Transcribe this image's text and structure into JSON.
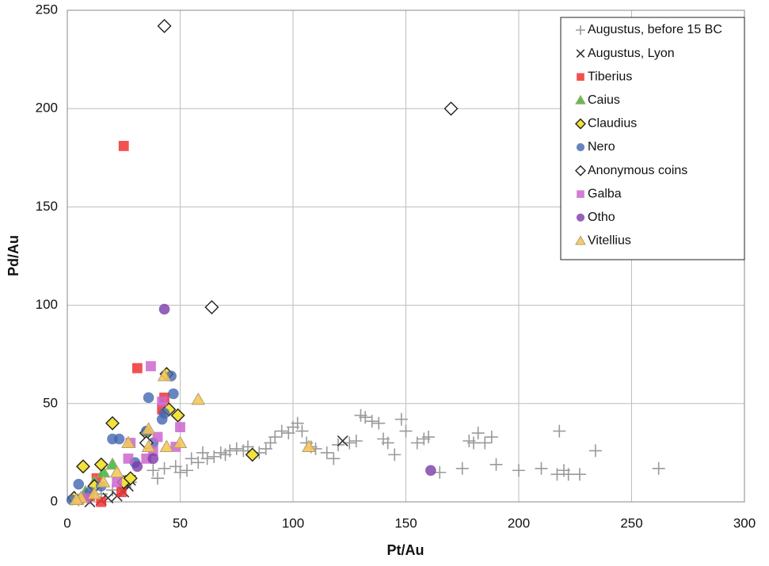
{
  "chart_data": {
    "type": "scatter",
    "x_label": "Pt/Au",
    "y_label": "Pd/Au",
    "xlim": [
      0,
      300
    ],
    "ylim": [
      0,
      250
    ],
    "xticks": [
      0,
      50,
      100,
      150,
      200,
      250,
      300
    ],
    "yticks": [
      0,
      50,
      100,
      150,
      200,
      250
    ],
    "grid": true,
    "legend": "upper right",
    "series": [
      {
        "name": "Augustus, before 15 BC",
        "color": "#9a9a9a",
        "marker": "plus",
        "x": [
          40,
          38,
          43,
          48,
          50,
          53,
          55,
          58,
          60,
          62,
          65,
          68,
          70,
          72,
          75,
          78,
          80,
          85,
          88,
          90,
          92,
          95,
          98,
          100,
          102,
          104,
          106,
          108,
          110,
          115,
          118,
          120,
          125,
          128,
          130,
          132,
          135,
          138,
          140,
          142,
          145,
          148,
          150,
          155,
          158,
          160,
          165,
          175,
          178,
          180,
          182,
          185,
          188,
          190,
          200,
          210,
          218,
          217,
          220,
          222,
          227,
          234,
          262,
          10,
          15,
          20,
          25,
          28,
          5
        ],
        "values": [
          12,
          16,
          17,
          18,
          15,
          16,
          22,
          20,
          25,
          22,
          23,
          25,
          24,
          26,
          27,
          26,
          28,
          25,
          27,
          30,
          33,
          36,
          35,
          38,
          40,
          36,
          30,
          28,
          27,
          25,
          22,
          29,
          30,
          31,
          44,
          43,
          41,
          40,
          32,
          30,
          24,
          42,
          36,
          30,
          32,
          33,
          15,
          17,
          31,
          30,
          35,
          30,
          33,
          19,
          16,
          17,
          36,
          14,
          16,
          14,
          14,
          26,
          17,
          2,
          4,
          6,
          8,
          10,
          1
        ]
      },
      {
        "name": "Augustus, Lyon",
        "color": "#333333",
        "marker": "x",
        "x": [
          122,
          25,
          27,
          22,
          18,
          15,
          10,
          28
        ],
        "values": [
          31,
          5,
          8,
          3,
          2,
          1,
          0,
          11
        ]
      },
      {
        "name": "Tiberius",
        "color": "#ee3333",
        "marker": "square",
        "x": [
          25,
          31,
          43,
          42,
          13,
          15,
          24,
          10,
          5
        ],
        "values": [
          181,
          68,
          53,
          47,
          12,
          0,
          5,
          3,
          1
        ]
      },
      {
        "name": "Caius",
        "color": "#44bb44",
        "marker": "triangle",
        "x": [
          20,
          16,
          12,
          8
        ],
        "values": [
          19,
          15,
          10,
          5
        ]
      },
      {
        "name": "Claudius",
        "color": "#f2e23a",
        "marker": "diamond",
        "x": [
          7,
          15,
          20,
          44,
          45,
          49,
          82,
          25,
          28,
          35,
          12,
          3
        ],
        "values": [
          18,
          19,
          40,
          65,
          47,
          44,
          24,
          10,
          12,
          35,
          8,
          2
        ]
      },
      {
        "name": "Nero",
        "color": "#4466b0",
        "marker": "circle",
        "x": [
          2,
          5,
          20,
          23,
          35,
          36,
          42,
          43,
          46,
          47,
          38,
          10,
          15,
          30
        ],
        "values": [
          1,
          9,
          32,
          32,
          36,
          53,
          42,
          45,
          64,
          55,
          30,
          5,
          8,
          20
        ]
      },
      {
        "name": "Anonymous coins",
        "color": "#ffffff",
        "marker": "diamond",
        "x": [
          43,
          170,
          64,
          35
        ],
        "values": [
          242,
          200,
          99,
          30
        ]
      },
      {
        "name": "Galba",
        "color": "#cc66cc",
        "marker": "square",
        "x": [
          37,
          42,
          48,
          50,
          27,
          35,
          38,
          40,
          28,
          22,
          8
        ],
        "values": [
          69,
          51,
          28,
          38,
          22,
          22,
          26,
          33,
          30,
          10,
          2
        ]
      },
      {
        "name": "Otho",
        "color": "#7a3aa8",
        "marker": "circle",
        "x": [
          43,
          161,
          31,
          38
        ],
        "values": [
          98,
          16,
          18,
          22
        ]
      },
      {
        "name": "Vitellius",
        "color": "#f6c65a",
        "marker": "triangle",
        "x": [
          43,
          58,
          50,
          44,
          36,
          27,
          22,
          16,
          107,
          12,
          6,
          4,
          36
        ],
        "values": [
          64,
          52,
          30,
          28,
          37,
          30,
          15,
          10,
          28,
          4,
          2,
          1,
          28
        ]
      }
    ]
  }
}
